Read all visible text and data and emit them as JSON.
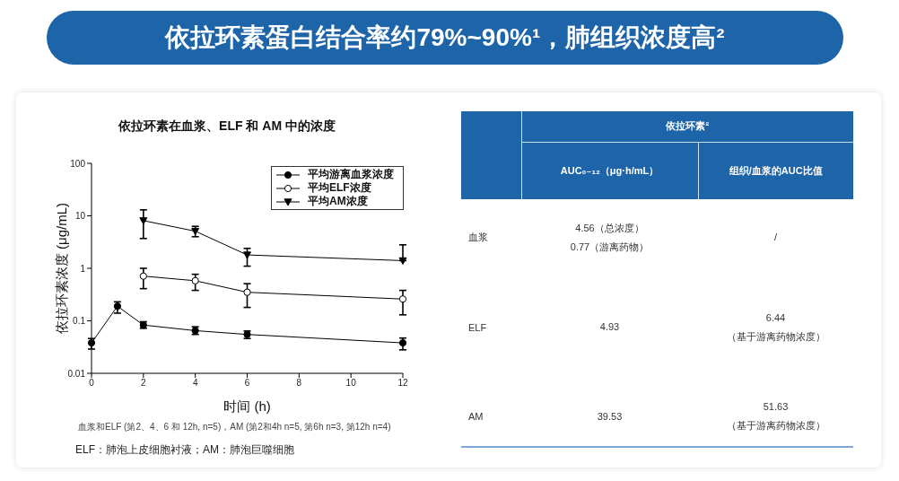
{
  "chart_data": [
    {
      "type": "other",
      "title": "依拉环素蛋白结合率约79%~90%¹，肺组织浓度高²"
    },
    {
      "type": "line",
      "title": "依拉环素在血浆、ELF 和 AM 中的浓度",
      "xlabel": "时间 (h)",
      "ylabel": "依拉环素浓度 (μg/mL)",
      "x": [
        0,
        1,
        2,
        4,
        6,
        12
      ],
      "series": [
        {
          "name": "平均游离血浆浓度",
          "color": "#000000",
          "marker": "circle",
          "values": [
            0.038,
            0.19,
            0.083,
            0.065,
            0.055,
            0.038
          ],
          "errors": [
            [
              0.029,
              0.046
            ],
            [
              0.14,
              0.23
            ],
            [
              0.072,
              0.096
            ],
            [
              0.055,
              0.077
            ],
            [
              0.046,
              0.064
            ],
            [
              0.028,
              0.047
            ]
          ]
        },
        {
          "name": "平均ELF浓度",
          "color": "#000000",
          "marker": "circle",
          "values": [
            null,
            null,
            0.71,
            0.58,
            0.35,
            0.26
          ],
          "errors": [
            null,
            null,
            [
              0.41,
              1.0
            ],
            [
              0.38,
              0.77
            ],
            [
              0.18,
              0.51
            ],
            [
              0.13,
              0.38
            ]
          ]
        },
        {
          "name": "平均AM浓度",
          "color": "#000000",
          "marker": "triangle",
          "values": [
            null,
            null,
            8.1,
            5.1,
            1.8,
            1.4
          ],
          "errors": [
            null,
            null,
            [
              3.7,
              13
            ],
            [
              4.0,
              6.3
            ],
            [
              1.1,
              2.4
            ],
            [
              1.4,
              2.8
            ]
          ]
        }
      ],
      "xlim": [
        0,
        12
      ],
      "xticks": [
        0,
        2,
        4,
        6,
        8,
        10,
        12
      ],
      "ylim": [
        0.01,
        100
      ],
      "yticks": [
        0.01,
        0.1,
        1,
        10,
        100
      ],
      "log": true,
      "legend": "top right",
      "annotations": [
        "血浆和ELF (第2、4、6 和 12h, n=5)，AM (第2和4h n=5, 第6h n=3, 第12h n=4)",
        "ELF：肺泡上皮细胞衬液；AM：肺泡巨噬细胞"
      ]
    },
    {
      "type": "other",
      "title": "依拉环素²",
      "categories": [
        "AUC₀₋₁₂（μg·h/mL）",
        "组织/血浆的AUC比值"
      ],
      "y_categories": [
        "血浆",
        "ELF",
        "AM"
      ],
      "cell_labels": [
        [
          "4.56（总浓度）\n0.77（游离药物）",
          "/"
        ],
        [
          "4.93",
          "6.44\n（基于游离药物浓度）"
        ],
        [
          "39.53",
          "51.63\n（基于游离药物浓度）"
        ]
      ]
    }
  ]
}
